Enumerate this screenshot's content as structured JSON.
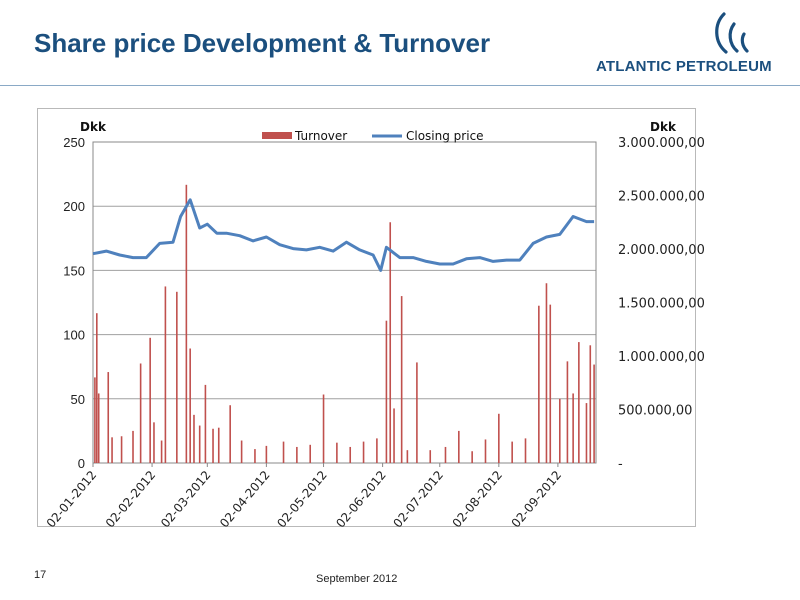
{
  "slide": {
    "title": "Share price Development & Turnover",
    "logo_text": "ATLANTIC PETROLEUM",
    "page_number": "17",
    "date": "September 2012"
  },
  "colors": {
    "title": "#1b4f7e",
    "turnover": "#c0504d",
    "closing_price": "#4f81bd",
    "grid": "#a0a0a0"
  },
  "chart_data": {
    "type": "bar+line",
    "title": "",
    "left_unit_label": "Dkk",
    "right_unit_label": "Dkk",
    "legend": [
      "Turnover",
      "Closing price"
    ],
    "legend_position": "top",
    "grid": true,
    "x_tick_labels": [
      "02-01-2012",
      "02-02-2012",
      "02-03-2012",
      "02-04-2012",
      "02-05-2012",
      "02-06-2012",
      "02-07-2012",
      "02-08-2012",
      "02-09-2012"
    ],
    "left_axis": {
      "min": 0,
      "max": 250,
      "ticks": [
        0,
        50,
        100,
        150,
        200,
        250
      ],
      "labels": [
        "0",
        "50",
        "100",
        "150",
        "200",
        "250"
      ]
    },
    "right_axis": {
      "min": 0,
      "max": 3000000,
      "ticks": [
        0,
        500000,
        1000000,
        1500000,
        2000000,
        2500000,
        3000000
      ],
      "labels": [
        "-",
        "500.000,00",
        "1.000.000,00",
        "1.500.000,00",
        "2.000.000,00",
        "2.500.000,00",
        "3.000.000,00"
      ]
    },
    "series": [
      {
        "name": "Closing price",
        "axis": "left",
        "type": "line",
        "x": [
          "2012-01-02",
          "2012-01-09",
          "2012-01-16",
          "2012-01-23",
          "2012-01-30",
          "2012-02-06",
          "2012-02-13",
          "2012-02-17",
          "2012-02-22",
          "2012-02-27",
          "2012-03-02",
          "2012-03-07",
          "2012-03-12",
          "2012-03-19",
          "2012-03-26",
          "2012-04-02",
          "2012-04-09",
          "2012-04-16",
          "2012-04-23",
          "2012-04-30",
          "2012-05-07",
          "2012-05-14",
          "2012-05-21",
          "2012-05-28",
          "2012-06-01",
          "2012-06-04",
          "2012-06-11",
          "2012-06-18",
          "2012-06-25",
          "2012-07-02",
          "2012-07-09",
          "2012-07-16",
          "2012-07-23",
          "2012-07-30",
          "2012-08-06",
          "2012-08-13",
          "2012-08-20",
          "2012-08-27",
          "2012-09-03",
          "2012-09-10",
          "2012-09-17",
          "2012-09-21"
        ],
        "values": [
          163,
          165,
          162,
          160,
          160,
          171,
          172,
          192,
          205,
          183,
          186,
          179,
          179,
          177,
          173,
          176,
          170,
          167,
          166,
          168,
          165,
          172,
          166,
          162,
          150,
          168,
          160,
          160,
          157,
          155,
          155,
          159,
          160,
          157,
          158,
          158,
          171,
          176,
          178,
          192,
          188,
          188
        ]
      },
      {
        "name": "Turnover",
        "axis": "right",
        "type": "bar",
        "x": [
          "2012-01-03",
          "2012-01-04",
          "2012-01-05",
          "2012-01-10",
          "2012-01-12",
          "2012-01-17",
          "2012-01-23",
          "2012-01-27",
          "2012-02-01",
          "2012-02-03",
          "2012-02-07",
          "2012-02-09",
          "2012-02-15",
          "2012-02-20",
          "2012-02-22",
          "2012-02-24",
          "2012-02-27",
          "2012-03-01",
          "2012-03-05",
          "2012-03-08",
          "2012-03-14",
          "2012-03-20",
          "2012-03-27",
          "2012-04-02",
          "2012-04-11",
          "2012-04-18",
          "2012-04-25",
          "2012-05-02",
          "2012-05-09",
          "2012-05-16",
          "2012-05-23",
          "2012-05-30",
          "2012-06-04",
          "2012-06-06",
          "2012-06-08",
          "2012-06-12",
          "2012-06-15",
          "2012-06-20",
          "2012-06-27",
          "2012-07-05",
          "2012-07-12",
          "2012-07-19",
          "2012-07-26",
          "2012-08-02",
          "2012-08-09",
          "2012-08-16",
          "2012-08-23",
          "2012-08-27",
          "2012-08-29",
          "2012-09-03",
          "2012-09-07",
          "2012-09-10",
          "2012-09-13",
          "2012-09-17",
          "2012-09-19",
          "2012-09-21"
        ],
        "values": [
          800000,
          1400000,
          650000,
          850000,
          240000,
          250000,
          300000,
          930000,
          1170000,
          380000,
          210000,
          1650000,
          1600000,
          2600000,
          1070000,
          450000,
          350000,
          730000,
          320000,
          330000,
          540000,
          210000,
          130000,
          160000,
          200000,
          150000,
          170000,
          640000,
          190000,
          150000,
          200000,
          230000,
          1330000,
          2250000,
          510000,
          1560000,
          120000,
          940000,
          120000,
          150000,
          300000,
          110000,
          220000,
          460000,
          200000,
          230000,
          1470000,
          1680000,
          1480000,
          600000,
          950000,
          650000,
          1130000,
          560000,
          1100000,
          920000
        ]
      }
    ]
  }
}
